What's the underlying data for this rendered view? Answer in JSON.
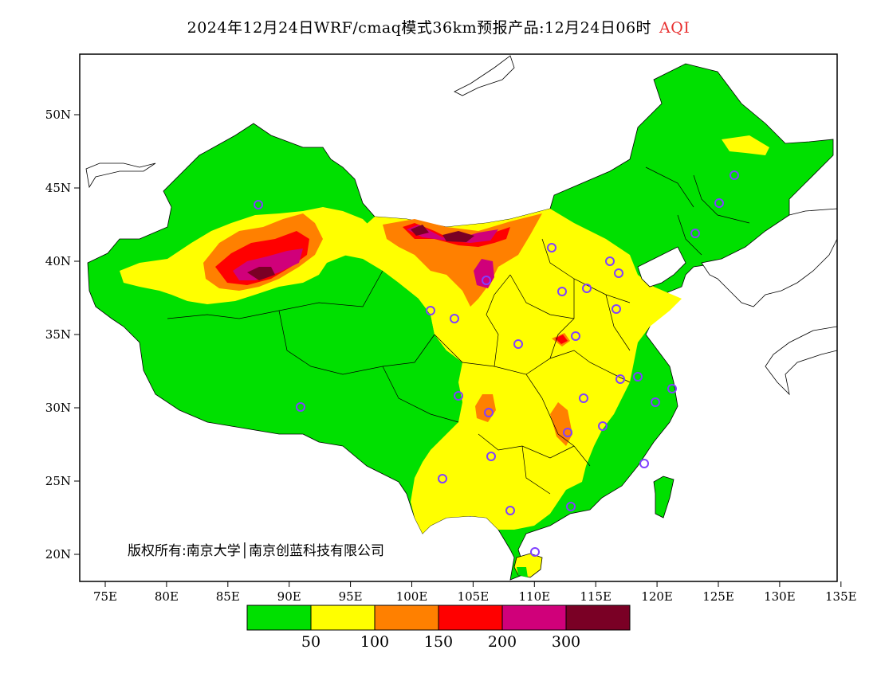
{
  "title": {
    "main": "2024年12月24日WRF/cmaq模式36km预报产品:12月24日06时",
    "variable": "AQI"
  },
  "axes": {
    "lon_ticks": [
      "75E",
      "80E",
      "85E",
      "90E",
      "95E",
      "100E",
      "105E",
      "110E",
      "115E",
      "120E",
      "125E",
      "130E",
      "135E"
    ],
    "lat_ticks": [
      "50N",
      "45N",
      "40N",
      "35N",
      "30N",
      "25N",
      "20N"
    ]
  },
  "copyright": "版权所有:南京大学│南京创蓝科技有限公司",
  "legend": {
    "colors": [
      "#00e000",
      "#ffff00",
      "#ff8000",
      "#ff0000",
      "#d0007a",
      "#7a0025"
    ],
    "labels": [
      "50",
      "100",
      "150",
      "200",
      "300"
    ]
  },
  "colors": {
    "good": "#00e000",
    "moderate": "#ffff00",
    "unhealthy_sensitive": "#ff8000",
    "unhealthy": "#ff0000",
    "very_unhealthy": "#d0007a",
    "hazardous": "#7a0025",
    "station_marker": "#8040ff",
    "border": "#000000"
  }
}
